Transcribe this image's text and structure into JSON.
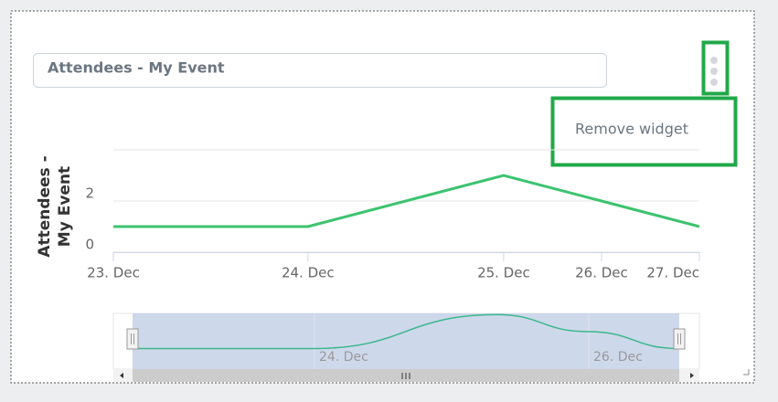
{
  "widget": {
    "title": "Attendees - My Event",
    "menu_item": "Remove widget"
  },
  "chart_data": {
    "type": "line",
    "y_label": "Attendees - My Event",
    "x": [
      "23. Dec",
      "24. Dec",
      "25. Dec",
      "26. Dec",
      "27. Dec"
    ],
    "series": [
      {
        "color": "#3cc36f",
        "values": [
          1,
          1,
          3,
          2,
          1
        ]
      }
    ],
    "ylim": [
      0,
      4
    ],
    "yticks": [
      0,
      2
    ],
    "grid": true,
    "navigator": {
      "labels": [
        "24. Dec",
        "26. Dec"
      ]
    }
  }
}
